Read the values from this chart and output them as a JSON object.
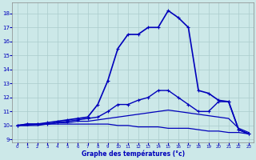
{
  "xlabel": "Graphe des températures (°c)",
  "background_color": "#cce8e8",
  "grid_color": "#aacccc",
  "line_color": "#0000bb",
  "xlim": [
    -0.5,
    23.5
  ],
  "ylim": [
    8.8,
    18.8
  ],
  "yticks": [
    9,
    10,
    11,
    12,
    13,
    14,
    15,
    16,
    17,
    18
  ],
  "xticks": [
    0,
    1,
    2,
    3,
    4,
    5,
    6,
    7,
    8,
    9,
    10,
    11,
    12,
    13,
    14,
    15,
    16,
    17,
    18,
    19,
    20,
    21,
    22,
    23
  ],
  "series": [
    {
      "x": [
        0,
        1,
        2,
        3,
        4,
        5,
        6,
        7,
        8,
        9,
        10,
        11,
        12,
        13,
        14,
        15,
        16,
        17,
        18,
        19,
        20,
        21,
        22,
        23
      ],
      "y": [
        10.0,
        10.0,
        10.0,
        10.1,
        10.1,
        10.1,
        10.1,
        10.1,
        10.1,
        10.1,
        10.0,
        10.0,
        9.9,
        9.9,
        9.9,
        9.8,
        9.8,
        9.8,
        9.7,
        9.6,
        9.6,
        9.5,
        9.5,
        9.4
      ],
      "marker": null,
      "linewidth": 0.9
    },
    {
      "x": [
        0,
        1,
        2,
        3,
        4,
        5,
        6,
        7,
        8,
        9,
        10,
        11,
        12,
        13,
        14,
        15,
        16,
        17,
        18,
        19,
        20,
        21,
        22,
        23
      ],
      "y": [
        10.0,
        10.0,
        10.1,
        10.1,
        10.2,
        10.2,
        10.3,
        10.3,
        10.4,
        10.5,
        10.6,
        10.7,
        10.8,
        10.9,
        11.0,
        11.1,
        11.0,
        10.9,
        10.8,
        10.7,
        10.6,
        10.5,
        9.8,
        9.5
      ],
      "marker": null,
      "linewidth": 0.9
    },
    {
      "x": [
        0,
        1,
        2,
        3,
        4,
        5,
        6,
        7,
        8,
        9,
        10,
        11,
        12,
        13,
        14,
        15,
        16,
        17,
        18,
        19,
        20,
        21,
        22,
        23
      ],
      "y": [
        10.0,
        10.1,
        10.1,
        10.1,
        10.2,
        10.3,
        10.4,
        10.5,
        10.6,
        11.0,
        11.5,
        11.5,
        11.8,
        12.0,
        12.5,
        12.5,
        12.0,
        11.5,
        11.0,
        11.0,
        11.7,
        11.7,
        9.7,
        9.4
      ],
      "marker": "+",
      "linewidth": 1.0
    },
    {
      "x": [
        0,
        1,
        2,
        3,
        4,
        5,
        6,
        7,
        8,
        9,
        10,
        11,
        12,
        13,
        14,
        15,
        16,
        17,
        18,
        19,
        20,
        21,
        22,
        23
      ],
      "y": [
        10.0,
        10.1,
        10.1,
        10.2,
        10.3,
        10.4,
        10.5,
        10.6,
        11.5,
        13.2,
        15.5,
        16.5,
        16.5,
        17.0,
        17.0,
        18.2,
        17.7,
        17.0,
        12.5,
        12.3,
        11.8,
        11.7,
        9.7,
        9.4
      ],
      "marker": "+",
      "linewidth": 1.2
    }
  ]
}
